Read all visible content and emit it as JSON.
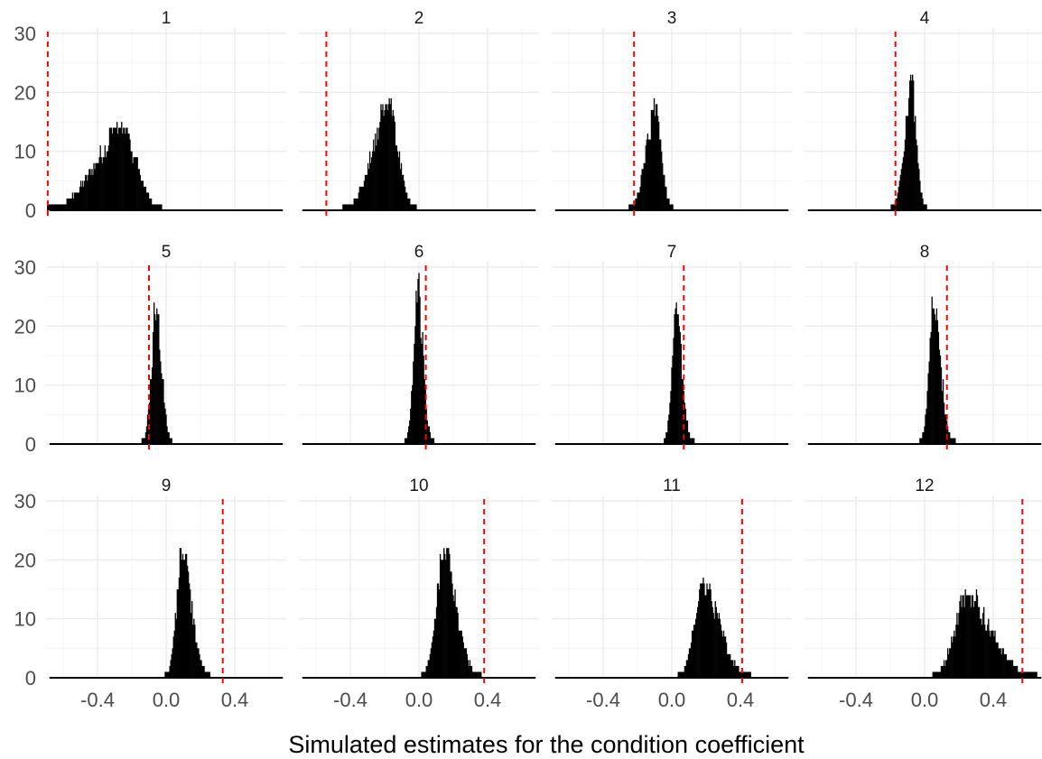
{
  "chart_data": {
    "type": "histogram",
    "title": "",
    "xlabel": "Simulated estimates for the condition coefficient",
    "ylabel": "",
    "xlim": [
      -0.7,
      0.7
    ],
    "ylim": [
      0,
      30
    ],
    "x_ticks": [
      -0.4,
      0.0,
      0.4
    ],
    "x_tick_labels": [
      "-0.4",
      "0.0",
      "0.4"
    ],
    "y_ticks": [
      0,
      10,
      20,
      30
    ],
    "y_tick_labels": [
      "0",
      "10",
      "20",
      "30"
    ],
    "grid": true,
    "facet_layout": {
      "rows": 3,
      "cols": 4
    },
    "bar_color": "#000000",
    "reference_line_color": "#ff0000",
    "reference_line_style": "dashed",
    "panels": [
      {
        "label": "1",
        "ref": -0.69,
        "mean": -0.26,
        "sd": 0.12,
        "peak": 15,
        "skew": -0.6
      },
      {
        "label": "2",
        "ref": -0.54,
        "mean": -0.18,
        "sd": 0.075,
        "peak": 19,
        "skew": -0.5
      },
      {
        "label": "3",
        "ref": -0.22,
        "mean": -0.1,
        "sd": 0.045,
        "peak": 19,
        "skew": -0.4
      },
      {
        "label": "4",
        "ref": -0.17,
        "mean": -0.08,
        "sd": 0.035,
        "peak": 23,
        "skew": -0.3
      },
      {
        "label": "5",
        "ref": -0.1,
        "mean": -0.06,
        "sd": 0.03,
        "peak": 25,
        "skew": 0.1
      },
      {
        "label": "6",
        "ref": 0.04,
        "mean": -0.01,
        "sd": 0.028,
        "peak": 29,
        "skew": 0.2
      },
      {
        "label": "7",
        "ref": 0.07,
        "mean": 0.02,
        "sd": 0.03,
        "peak": 24,
        "skew": 0.4
      },
      {
        "label": "8",
        "ref": 0.13,
        "mean": 0.05,
        "sd": 0.035,
        "peak": 25,
        "skew": 0.4
      },
      {
        "label": "9",
        "ref": 0.33,
        "mean": 0.09,
        "sd": 0.045,
        "peak": 23,
        "skew": 0.5
      },
      {
        "label": "10",
        "ref": 0.38,
        "mean": 0.14,
        "sd": 0.06,
        "peak": 22,
        "skew": 0.5
      },
      {
        "label": "11",
        "ref": 0.41,
        "mean": 0.18,
        "sd": 0.075,
        "peak": 17,
        "skew": 0.6
      },
      {
        "label": "12",
        "ref": 0.57,
        "mean": 0.24,
        "sd": 0.11,
        "peak": 15,
        "skew": 0.7
      }
    ]
  }
}
